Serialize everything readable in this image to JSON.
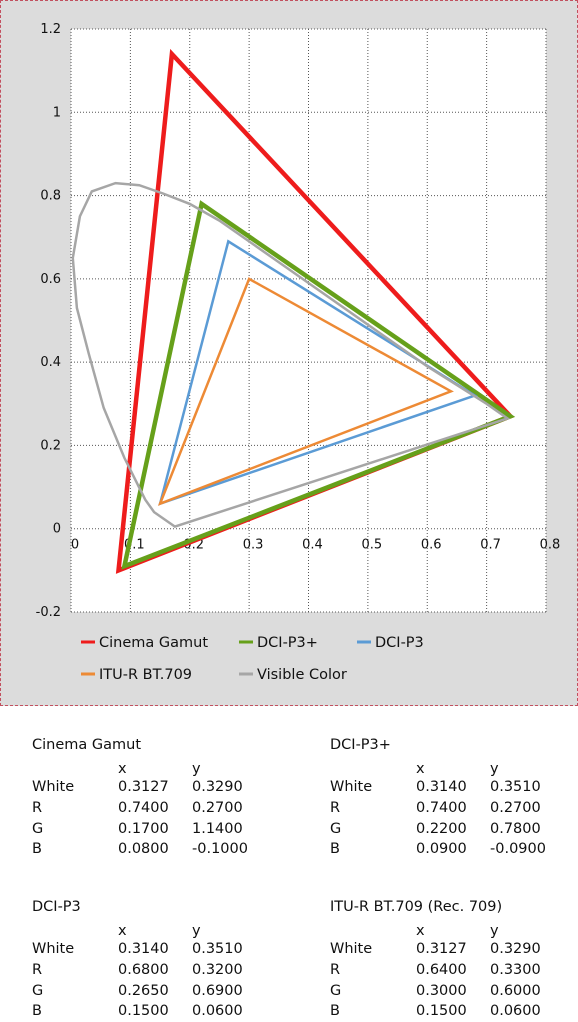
{
  "chart_data": {
    "type": "scatter",
    "subtype": "chromaticity-gamut",
    "xlim": [
      0,
      0.8
    ],
    "ylim": [
      -0.2,
      1.2
    ],
    "x_ticks": [
      "0",
      "0.1",
      "0.2",
      "0.3",
      "0.4",
      "0.5",
      "0.6",
      "0.7",
      "0.8"
    ],
    "y_ticks": [
      "-0.2",
      "0",
      "0.2",
      "0.4",
      "0.6",
      "0.8",
      "1",
      "1.2"
    ],
    "grid": "dotted",
    "legend_position": "bottom",
    "series": [
      {
        "name": "Cinema Gamut",
        "color": "#ee1c1c",
        "width": 4.5,
        "closed": true,
        "points": [
          [
            0.74,
            0.27
          ],
          [
            0.17,
            1.14
          ],
          [
            0.08,
            -0.1
          ]
        ]
      },
      {
        "name": "DCI-P3+",
        "color": "#66a01a",
        "width": 4.5,
        "closed": true,
        "points": [
          [
            0.74,
            0.27
          ],
          [
            0.22,
            0.78
          ],
          [
            0.09,
            -0.09
          ]
        ]
      },
      {
        "name": "DCI-P3",
        "color": "#5b9bd5",
        "width": 2.5,
        "closed": true,
        "points": [
          [
            0.68,
            0.32
          ],
          [
            0.265,
            0.69
          ],
          [
            0.15,
            0.06
          ]
        ]
      },
      {
        "name": "ITU-R BT.709",
        "color": "#ed8a35",
        "width": 2.5,
        "closed": true,
        "points": [
          [
            0.64,
            0.33
          ],
          [
            0.3,
            0.6
          ],
          [
            0.15,
            0.06
          ]
        ]
      },
      {
        "name": "Visible Color",
        "color": "#a6a6a6",
        "width": 2.5,
        "closed": true,
        "points": [
          [
            0.175,
            0.005
          ],
          [
            0.14,
            0.04
          ],
          [
            0.125,
            0.07
          ],
          [
            0.09,
            0.17
          ],
          [
            0.055,
            0.29
          ],
          [
            0.03,
            0.42
          ],
          [
            0.01,
            0.53
          ],
          [
            0.003,
            0.65
          ],
          [
            0.015,
            0.75
          ],
          [
            0.035,
            0.81
          ],
          [
            0.075,
            0.83
          ],
          [
            0.115,
            0.825
          ],
          [
            0.155,
            0.805
          ],
          [
            0.2,
            0.78
          ],
          [
            0.25,
            0.74
          ],
          [
            0.3,
            0.69
          ],
          [
            0.4,
            0.59
          ],
          [
            0.5,
            0.49
          ],
          [
            0.6,
            0.39
          ],
          [
            0.7,
            0.3
          ],
          [
            0.735,
            0.265
          ]
        ]
      }
    ],
    "legend": [
      {
        "name": "Cinema Gamut",
        "color": "#ee1c1c"
      },
      {
        "name": "DCI-P3+",
        "color": "#66a01a"
      },
      {
        "name": "DCI-P3",
        "color": "#5b9bd5"
      },
      {
        "name": "ITU-R BT.709",
        "color": "#ed8a35"
      },
      {
        "name": "Visible Color",
        "color": "#a6a6a6"
      }
    ]
  },
  "tables": [
    {
      "title": "Cinema Gamut",
      "header": [
        "",
        "x",
        "y"
      ],
      "rows": [
        [
          "White",
          "0.3127",
          "0.3290"
        ],
        [
          "R",
          "0.7400",
          "0.2700"
        ],
        [
          "G",
          "0.1700",
          "1.1400"
        ],
        [
          "B",
          "0.0800",
          "-0.1000"
        ]
      ]
    },
    {
      "title": "DCI-P3+",
      "header": [
        "",
        "x",
        "y"
      ],
      "rows": [
        [
          "White",
          "0.3140",
          "0.3510"
        ],
        [
          "R",
          "0.7400",
          "0.2700"
        ],
        [
          "G",
          "0.2200",
          "0.7800"
        ],
        [
          "B",
          "0.0900",
          "-0.0900"
        ]
      ]
    },
    {
      "title": "DCI-P3",
      "header": [
        "",
        "x",
        "y"
      ],
      "rows": [
        [
          "White",
          "0.3140",
          "0.3510"
        ],
        [
          "R",
          "0.6800",
          "0.3200"
        ],
        [
          "G",
          "0.2650",
          "0.6900"
        ],
        [
          "B",
          "0.1500",
          "0.0600"
        ]
      ]
    },
    {
      "title": "ITU-R BT.709 (Rec. 709)",
      "header": [
        "",
        "x",
        "y"
      ],
      "rows": [
        [
          "White",
          "0.3127",
          "0.3290"
        ],
        [
          "R",
          "0.6400",
          "0.3300"
        ],
        [
          "G",
          "0.3000",
          "0.6000"
        ],
        [
          "B",
          "0.1500",
          "0.0600"
        ]
      ]
    }
  ]
}
